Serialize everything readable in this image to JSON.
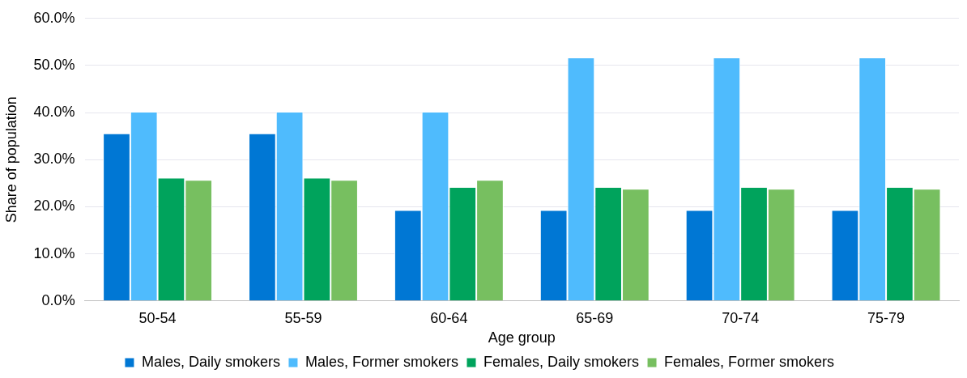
{
  "chart_data": {
    "type": "bar",
    "xlabel": "Age group",
    "ylabel": "Share of population",
    "categories": [
      "50-54",
      "55-59",
      "60-64",
      "65-69",
      "70-74",
      "75-79"
    ],
    "series": [
      {
        "name": "Males, Daily smokers",
        "color": "#0077d4",
        "values": [
          35.6,
          35.6,
          19.3,
          19.3,
          19.3,
          19.3
        ]
      },
      {
        "name": "Males, Former smokers",
        "color": "#4fbbfd",
        "values": [
          40.2,
          40.2,
          40.2,
          51.7,
          51.7,
          51.7
        ]
      },
      {
        "name": "Females, Daily smokers",
        "color": "#00a35c",
        "values": [
          26.2,
          26.2,
          24.2,
          24.2,
          24.2,
          24.2
        ]
      },
      {
        "name": "Females, Former smokers",
        "color": "#77bf60",
        "values": [
          25.7,
          25.7,
          25.7,
          23.8,
          23.8,
          23.8
        ]
      }
    ],
    "ylim": [
      0,
      60
    ],
    "yticks": [
      {
        "value": 0,
        "label": "0.0%"
      },
      {
        "value": 10,
        "label": "10.0%"
      },
      {
        "value": 20,
        "label": "20.0%"
      },
      {
        "value": 30,
        "label": "30.0%"
      },
      {
        "value": 40,
        "label": "40.0%"
      },
      {
        "value": 50,
        "label": "50.0%"
      },
      {
        "value": 60,
        "label": "60.0%"
      }
    ],
    "grid": "y",
    "legend": "bottom"
  }
}
